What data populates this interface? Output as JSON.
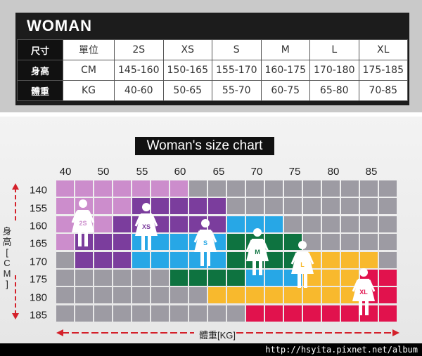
{
  "header": {
    "title": "WOMAN"
  },
  "table": {
    "rows": [
      {
        "head": "尺寸",
        "unit": "單位",
        "cells": [
          "2S",
          "XS",
          "S",
          "M",
          "L",
          "XL"
        ]
      },
      {
        "head": "身高",
        "unit": "CM",
        "cells": [
          "145-160",
          "150-165",
          "155-170",
          "160-175",
          "170-180",
          "175-185"
        ]
      },
      {
        "head": "體重",
        "unit": "KG",
        "cells": [
          "40-60",
          "50-65",
          "55-70",
          "60-75",
          "65-80",
          "70-85"
        ]
      }
    ]
  },
  "chart": {
    "title": "Woman's size chart",
    "x_ticks": [
      "40",
      "50",
      "55",
      "60",
      "65",
      "70",
      "75",
      "80",
      "85"
    ],
    "y_ticks": [
      "140",
      "155",
      "160",
      "165",
      "170",
      "175",
      "180",
      "185"
    ],
    "ylabel": "身高[CM]",
    "xlabel": "體重[KG]",
    "colors": {
      "grid": "#9d9ba3",
      "2S": "#cc8dcc",
      "XS": "#7b3d9d",
      "S": "#27a7e6",
      "M": "#0e7340",
      "L": "#f8b92d",
      "XL": "#e1124d",
      "arrow": "#d4202a"
    },
    "figures": [
      {
        "label": "2S",
        "color": "#cc8dcc"
      },
      {
        "label": "XS",
        "color": "#7b3d9d"
      },
      {
        "label": "S",
        "color": "#27a7e6"
      },
      {
        "label": "M",
        "color": "#0e7340"
      },
      {
        "label": "L",
        "color": "#f8b92d"
      },
      {
        "label": "XL",
        "color": "#e1124d"
      }
    ]
  },
  "chart_data": {
    "type": "heatmap",
    "title": "Woman's size chart",
    "xlabel": "體重[KG]",
    "ylabel": "身高[CM]",
    "x": [
      "40",
      "50",
      "55",
      "60",
      "65",
      "70",
      "75",
      "80",
      "85"
    ],
    "y": [
      "140",
      "155",
      "160",
      "165",
      "170",
      "175",
      "180",
      "185"
    ],
    "series": [
      {
        "name": "2S",
        "height_cm": [
          145,
          160
        ],
        "weight_kg": [
          40,
          60
        ]
      },
      {
        "name": "XS",
        "height_cm": [
          150,
          165
        ],
        "weight_kg": [
          50,
          65
        ]
      },
      {
        "name": "S",
        "height_cm": [
          155,
          170
        ],
        "weight_kg": [
          55,
          70
        ]
      },
      {
        "name": "M",
        "height_cm": [
          160,
          175
        ],
        "weight_kg": [
          60,
          75
        ]
      },
      {
        "name": "L",
        "height_cm": [
          170,
          180
        ],
        "weight_kg": [
          65,
          80
        ]
      },
      {
        "name": "XL",
        "height_cm": [
          175,
          185
        ],
        "weight_kg": [
          70,
          85
        ]
      }
    ]
  },
  "watermark": "http://hsyita.pixnet.net/album"
}
